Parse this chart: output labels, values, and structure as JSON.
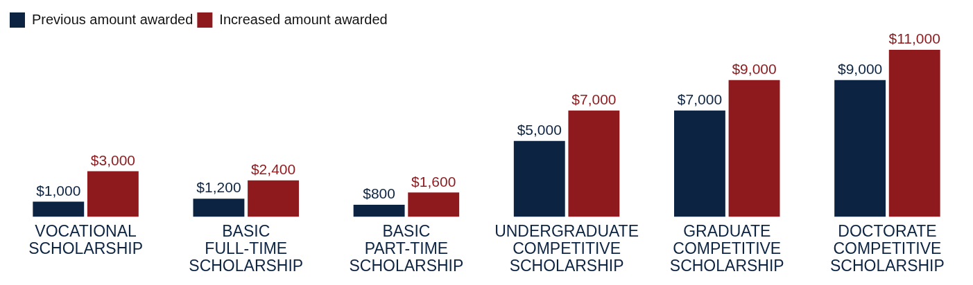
{
  "chart_data": {
    "type": "bar",
    "categories": [
      "VOCATIONAL\nSCHOLARSHIP",
      "BASIC\nFULL-TIME\nSCHOLARSHIP",
      "BASIC\nPART-TIME\nSCHOLARSHIP",
      "UNDERGRADUATE\nCOMPETITIVE\nSCHOLARSHIP",
      "GRADUATE\nCOMPETITIVE\nSCHOLARSHIP",
      "DOCTORATE\nCOMPETITIVE\nSCHOLARSHIP"
    ],
    "series": [
      {
        "name": "Previous amount awarded",
        "color": "#0c2442",
        "values": [
          1000,
          1200,
          800,
          5000,
          7000,
          9000
        ],
        "value_labels": [
          "$1,000",
          "$1,200",
          "$800",
          "$5,000",
          "$7,000",
          "$9,000"
        ]
      },
      {
        "name": "Increased amount awarded",
        "color": "#8e1a1e",
        "values": [
          3000,
          2400,
          1600,
          7000,
          9000,
          11000
        ],
        "value_labels": [
          "$3,000",
          "$2,400",
          "$1,600",
          "$7,000",
          "$9,000",
          "$11,000"
        ]
      }
    ],
    "legend": "top left",
    "grid": false
  }
}
